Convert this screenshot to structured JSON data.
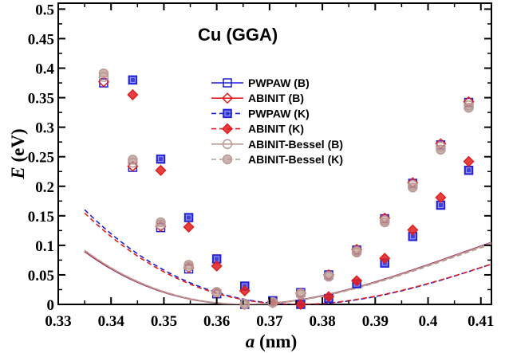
{
  "chart_data": {
    "type": "line",
    "title": "Cu  (GGA)",
    "xlabel": {
      "italic": "a",
      "unit": " (nm)"
    },
    "ylabel": {
      "italic": "E",
      "unit": " (eV)"
    },
    "xlim": [
      0.33,
      0.412
    ],
    "ylim": [
      0,
      0.51
    ],
    "xticks": [
      0.33,
      0.34,
      0.35,
      0.36,
      0.37,
      0.38,
      0.39,
      0.4,
      0.41
    ],
    "xtick_labels": [
      "0.33",
      "0.34",
      "0.35",
      "0.36",
      "0.37",
      "0.38",
      "0.39",
      "0.4",
      "0.41"
    ],
    "yticks": [
      0,
      0.05,
      0.1,
      0.15,
      0.2,
      0.25,
      0.3,
      0.35,
      0.4,
      0.45,
      0.5
    ],
    "ytick_labels": [
      "0",
      "0.05",
      "0.1",
      "0.15",
      "0.2",
      "0.25",
      "0.3",
      "0.35",
      "0.4",
      "0.45",
      "0.5"
    ],
    "legend_position": "top-center",
    "series": [
      {
        "name": "PWPAW (B)",
        "color": "#1f1fd6",
        "marker": "square-open",
        "line": "solid",
        "fit": {
          "a0": 0.3653,
          "k": 0.78,
          "c1": 0.82
        },
        "x": [
          0.3386,
          0.3441,
          0.3494,
          0.3547,
          0.36,
          0.3653,
          0.3706,
          0.3759,
          0.3812,
          0.3865,
          0.3918,
          0.3971,
          0.4024,
          0.4077
        ],
        "y": [
          0.375,
          0.232,
          0.13,
          0.06,
          0.018,
          0.0,
          0.006,
          0.02,
          0.05,
          0.092,
          0.145,
          0.205,
          0.27,
          0.342
        ]
      },
      {
        "name": "ABINIT (B)",
        "color": "#e01f1f",
        "marker": "diamond-open",
        "line": "solid",
        "fit": {
          "a0": 0.3654,
          "k": 0.78,
          "c1": 0.82
        },
        "x": [
          0.3386,
          0.3441,
          0.3494,
          0.3547,
          0.36,
          0.3653,
          0.3706,
          0.3759,
          0.3812,
          0.3865,
          0.3918,
          0.3971,
          0.4024,
          0.4077
        ],
        "y": [
          0.377,
          0.234,
          0.132,
          0.062,
          0.019,
          0.0,
          0.005,
          0.019,
          0.05,
          0.093,
          0.146,
          0.206,
          0.272,
          0.343
        ]
      },
      {
        "name": "PWPAW (K)",
        "color": "#1f1fd6",
        "marker": "square-filled",
        "line": "dashed",
        "fit": {
          "a0": 0.3757,
          "k": 0.73,
          "c1": 0.8
        },
        "x": [
          0.3441,
          0.3494,
          0.3547,
          0.36,
          0.3653,
          0.3706,
          0.3759,
          0.3812,
          0.3865,
          0.3918,
          0.3971,
          0.4024,
          0.4077
        ],
        "y": [
          0.38,
          0.246,
          0.147,
          0.077,
          0.031,
          0.006,
          0.0,
          0.01,
          0.035,
          0.07,
          0.115,
          0.168,
          0.227
        ]
      },
      {
        "name": "ABINIT (K)",
        "color": "#e01f1f",
        "marker": "diamond-filled",
        "line": "dashed",
        "fit": {
          "a0": 0.3752,
          "k": 0.72,
          "c1": 0.82
        },
        "x": [
          0.3441,
          0.3494,
          0.3547,
          0.36,
          0.3653,
          0.3706,
          0.3759,
          0.3812,
          0.3865,
          0.3918,
          0.3971,
          0.4024,
          0.4077
        ],
        "y": [
          0.355,
          0.227,
          0.131,
          0.065,
          0.023,
          0.003,
          0.0,
          0.013,
          0.04,
          0.078,
          0.126,
          0.181,
          0.242
        ]
      },
      {
        "name": "ABINIT-Bessel (B)",
        "color": "#b99a93",
        "marker": "circle-open",
        "line": "solid",
        "fit": {
          "a0": 0.3656,
          "k": 0.78,
          "c1": 0.82
        },
        "x": [
          0.3386,
          0.3441,
          0.3494,
          0.3547,
          0.36,
          0.3653,
          0.3706,
          0.3759,
          0.3812,
          0.3865,
          0.3918,
          0.3971,
          0.4024,
          0.4077
        ],
        "y": [
          0.385,
          0.24,
          0.135,
          0.064,
          0.02,
          0.0,
          0.004,
          0.018,
          0.048,
          0.09,
          0.142,
          0.202,
          0.267,
          0.337
        ]
      },
      {
        "name": "ABINIT-Bessel (K)",
        "color": "#b99a93",
        "marker": "circle-filled",
        "line": "dashed",
        "fit": {
          "a0": 0.3658,
          "k": 0.77,
          "c1": 0.82
        },
        "x": [
          0.3386,
          0.3441,
          0.3494,
          0.3547,
          0.36,
          0.3653,
          0.3706,
          0.3759,
          0.3812,
          0.3865,
          0.3918,
          0.3971,
          0.4024,
          0.4077
        ],
        "y": [
          0.391,
          0.245,
          0.139,
          0.067,
          0.021,
          0.001,
          0.003,
          0.017,
          0.047,
          0.088,
          0.139,
          0.198,
          0.262,
          0.333
        ]
      }
    ]
  }
}
